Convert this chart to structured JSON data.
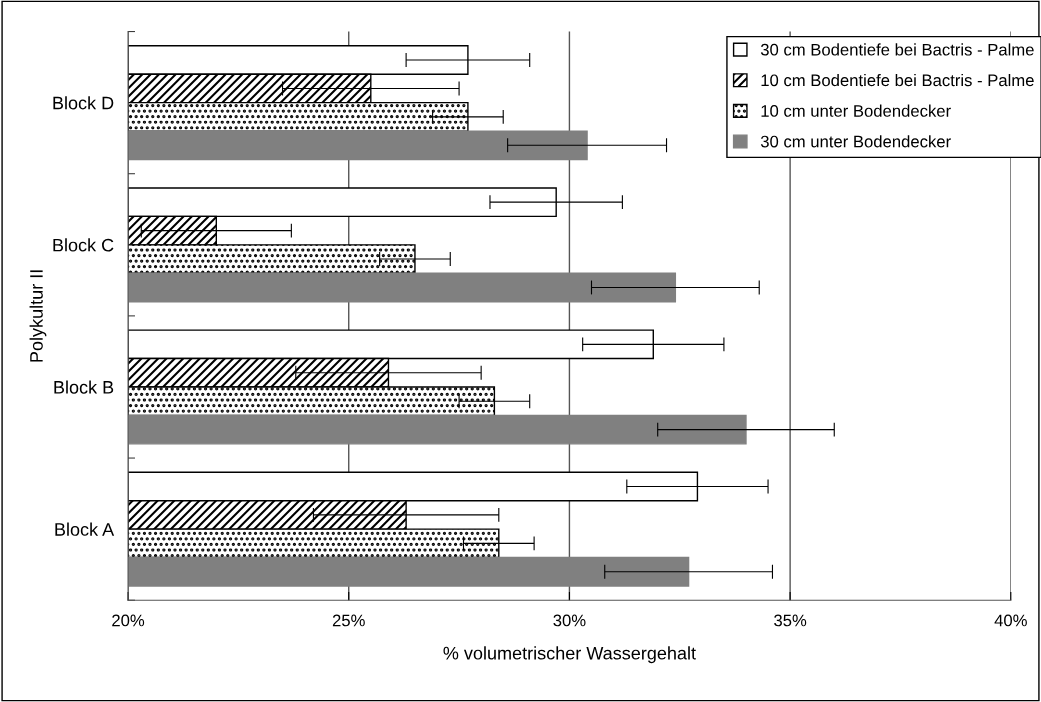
{
  "chart_data": {
    "type": "bar",
    "orientation": "horizontal",
    "xlabel": "% volumetrischer Wassergehalt",
    "ylabel": "Polykultur II",
    "categories": [
      "Block D",
      "Block C",
      "Block B",
      "Block A"
    ],
    "series": [
      {
        "name": "30 cm Bodentiefe bei Bactris - Palme",
        "color": "#ffffff",
        "values": [
          27.7,
          29.7,
          31.9,
          32.9
        ],
        "errors": [
          1.4,
          1.5,
          1.6,
          1.6
        ]
      },
      {
        "name": "10 cm Bodentiefe bei Bactris - Palme",
        "color": "#000000",
        "values": [
          25.5,
          22.0,
          25.9,
          26.3
        ],
        "errors": [
          2.0,
          1.7,
          2.1,
          2.1
        ]
      },
      {
        "name": "10 cm unter Bodendecker",
        "color": "#000000",
        "values": [
          27.7,
          26.5,
          28.3,
          28.4
        ],
        "errors": [
          0.8,
          0.8,
          0.8,
          0.8
        ]
      },
      {
        "name": "30 cm unter Bodendecker",
        "color": "#808080",
        "values": [
          30.4,
          32.4,
          34.0,
          32.7
        ],
        "errors": [
          1.8,
          1.9,
          2.0,
          1.9
        ]
      }
    ],
    "xlim": [
      20,
      40
    ],
    "xticks": [
      {
        "value": 20,
        "label": "20%"
      },
      {
        "value": 25,
        "label": "25%"
      },
      {
        "value": 30,
        "label": "30%"
      },
      {
        "value": 35,
        "label": "35%"
      },
      {
        "value": 40,
        "label": "40%"
      }
    ],
    "grid": "x",
    "legend": "top right"
  }
}
